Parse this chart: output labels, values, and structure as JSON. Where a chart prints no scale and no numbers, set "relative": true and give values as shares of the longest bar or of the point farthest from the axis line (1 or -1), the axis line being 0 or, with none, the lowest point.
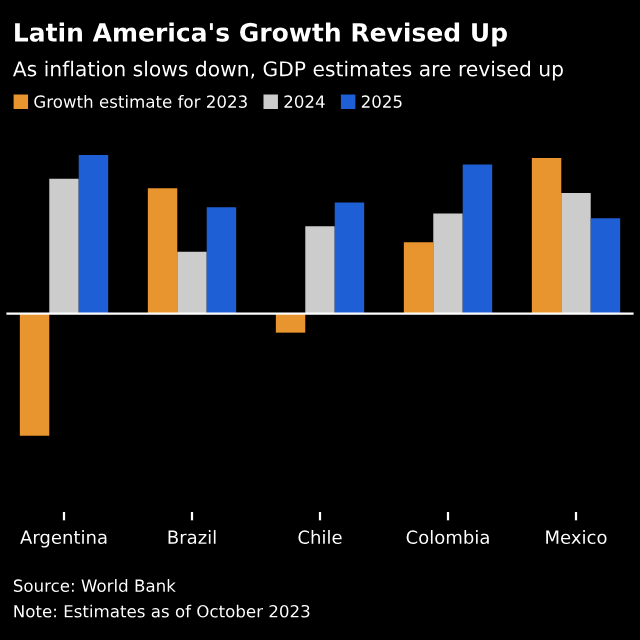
{
  "chart_data": {
    "type": "bar",
    "title": "Latin America's Growth Revised Up",
    "subtitle": "As inflation slows down, GDP estimates are revised up",
    "categories": [
      "Argentina",
      "Brazil",
      "Chile",
      "Colombia",
      "Mexico"
    ],
    "relative": true,
    "series": [
      {
        "name": "Growth estimate for 2023",
        "color": "#e8952f",
        "values": [
          -0.77,
          0.79,
          -0.12,
          0.45,
          0.98
        ]
      },
      {
        "name": "2024",
        "color": "#cccccc",
        "values": [
          0.85,
          0.39,
          0.55,
          0.63,
          0.76
        ]
      },
      {
        "name": "2025",
        "color": "#1f5fd6",
        "values": [
          1.0,
          0.67,
          0.7,
          0.94,
          0.6
        ]
      }
    ],
    "legend": "top left",
    "grid": false,
    "annotations": [
      "Source: World Bank",
      "Note: Estimates as of October 2023"
    ]
  }
}
